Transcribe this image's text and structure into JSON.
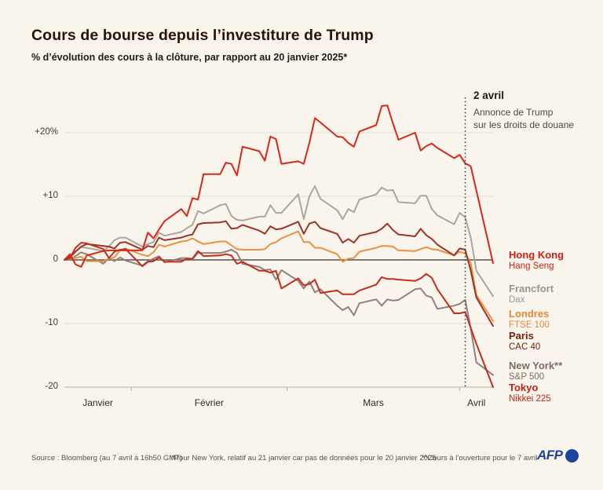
{
  "header": {
    "title": "Cours de bourse depuis l’investiture de Trump",
    "subtitle": "% d’évolution des cours à la clôture, par rapport au 20 janvier 2025*"
  },
  "footer": {
    "source": "Source : Bloomberg (au 7 avril à 16h50 GMT)",
    "note1": "*Pour New York, relatif au 21 janvier car pas de données pour le 20 janvier 2025",
    "note2": "**Cours à l’ouverture pour le 7 avril",
    "logo_text": "AFP"
  },
  "chart_data": {
    "type": "line",
    "title": "Cours de bourse depuis l’investiture de Trump",
    "ylabel": "% d’évolution des cours à la clôture",
    "x_axis": {
      "unit": "jours depuis le 20 janvier 2025",
      "total_days": 77,
      "months": [
        {
          "label": "Janvier",
          "center_day": 6
        },
        {
          "label": "Février",
          "center_day": 26
        },
        {
          "label": "Mars",
          "center_day": 55.5
        },
        {
          "label": "Avril",
          "center_day": 74
        }
      ],
      "month_boundary_ticks_days": [
        12,
        40,
        71
      ]
    },
    "y_axis": {
      "min": -20,
      "max": 25,
      "grid": true,
      "ticks": [
        {
          "label": "+20%",
          "value": 20
        },
        {
          "label": "+10",
          "value": 10
        },
        {
          "label": "0",
          "value": 0
        },
        {
          "label": "-10",
          "value": -10
        },
        {
          "label": "-20",
          "value": -20
        }
      ]
    },
    "annotation": {
      "title": "2 avril",
      "line1": "Annonce de Trump",
      "line2": "sur les droits de douane",
      "day": 72,
      "line_color": "#3b3b3b"
    },
    "day_offsets": [
      0,
      1,
      2,
      3,
      4,
      7,
      8,
      9,
      10,
      11,
      14,
      15,
      16,
      17,
      18,
      21,
      22,
      23,
      24,
      25,
      28,
      29,
      30,
      31,
      32,
      35,
      36,
      37,
      38,
      39,
      42,
      43,
      44,
      45,
      46,
      49,
      50,
      51,
      52,
      53,
      56,
      57,
      58,
      59,
      60,
      63,
      64,
      65,
      66,
      67,
      70,
      71,
      72,
      73,
      74,
      77
    ],
    "series": [
      {
        "city": "Hong Kong",
        "index_name": "Hang Seng",
        "color": "#d6281c",
        "label_color": "#cf2015",
        "values": [
          0,
          0.9,
          -0.7,
          -1.1,
          0.7,
          1.4,
          1.5,
          1.5,
          1.5,
          1.5,
          1.5,
          4.3,
          3.4,
          4.8,
          6.1,
          8.0,
          6.9,
          9.7,
          9.5,
          13.5,
          13.5,
          15.3,
          15.1,
          13.3,
          17.8,
          17.1,
          15.6,
          19.4,
          19.0,
          15.1,
          15.5,
          15.1,
          18.4,
          22.3,
          21.6,
          19.4,
          19.3,
          18.4,
          17.8,
          20.2,
          21.2,
          24.2,
          24.3,
          21.5,
          18.9,
          20.0,
          17.2,
          17.9,
          18.3,
          17.6,
          16.0,
          16.5,
          15.2,
          14.7,
          null,
          -0.5
        ]
      },
      {
        "city": "Francfort",
        "index_name": "Dax",
        "color": "#aca59c",
        "label_color": "#9b958d",
        "values": [
          0,
          0.2,
          1.3,
          2.0,
          1.9,
          1.4,
          2.1,
          3.1,
          3.5,
          3.5,
          2.1,
          2.5,
          2.8,
          4.3,
          3.8,
          4.4,
          5.0,
          5.5,
          7.7,
          7.3,
          8.6,
          8.8,
          6.9,
          6.3,
          6.2,
          6.8,
          6.8,
          8.6,
          7.4,
          7.4,
          10.3,
          6.4,
          10.0,
          11.6,
          9.6,
          7.8,
          6.4,
          8.0,
          7.5,
          9.5,
          10.3,
          11.4,
          10.9,
          11.0,
          9.1,
          8.9,
          10.1,
          10.1,
          8.0,
          7.0,
          5.6,
          7.4,
          6.7,
          3.5,
          -1.7,
          -5.7
        ]
      },
      {
        "city": "Londres",
        "index_name": "FTSE 100",
        "color": "#e79346",
        "label_color": "#e1893a",
        "values": [
          0,
          0.3,
          0.3,
          0.5,
          -0.2,
          -0.2,
          0.2,
          0.4,
          1.5,
          1.8,
          0.8,
          0.6,
          1.2,
          2.4,
          2.1,
          2.9,
          3.0,
          3.4,
          2.9,
          2.5,
          2.9,
          2.9,
          2.3,
          1.7,
          1.6,
          1.6,
          1.7,
          2.5,
          2.8,
          3.4,
          4.5,
          2.8,
          2.8,
          1.9,
          1.9,
          0.9,
          -0.3,
          0.2,
          0.3,
          1.3,
          1.9,
          2.2,
          2.2,
          2.1,
          1.5,
          1.4,
          1.7,
          2.0,
          1.7,
          1.6,
          0.7,
          1.3,
          1.0,
          -0.5,
          -5.5,
          -9.6
        ]
      },
      {
        "city": "Paris",
        "index_name": "CAC 40",
        "color": "#9c3328",
        "label_color": "#7d2014",
        "values": [
          0,
          0.5,
          1.3,
          2.1,
          2.5,
          2.2,
          2.1,
          1.8,
          2.7,
          2.8,
          1.6,
          2.2,
          2.0,
          3.5,
          3.1,
          3.5,
          3.8,
          4.0,
          5.6,
          5.8,
          5.9,
          6.1,
          4.9,
          5.0,
          5.5,
          4.6,
          4.1,
          5.3,
          4.8,
          4.9,
          6.0,
          4.1,
          5.7,
          6.0,
          5.0,
          4.1,
          2.7,
          3.3,
          2.7,
          3.8,
          4.4,
          4.9,
          5.7,
          4.7,
          4.0,
          3.7,
          4.9,
          3.9,
          3.3,
          2.4,
          0.7,
          1.8,
          1.6,
          -1.7,
          -5.9,
          -10.4
        ]
      },
      {
        "city": "New York**",
        "index_name": "S&P 500",
        "color": "#93807b",
        "label_color": "#7d6b63",
        "values": [
          null,
          0,
          0.6,
          1.2,
          0.9,
          -0.6,
          0.3,
          -0.2,
          0.4,
          -0.1,
          -0.9,
          -0.2,
          0.2,
          0.6,
          -0.4,
          0.3,
          0.3,
          0.1,
          1.1,
          1.1,
          1.1,
          1.3,
          1.6,
          1.1,
          -0.6,
          -1.1,
          -1.6,
          -1.5,
          -3.1,
          -1.6,
          -3.3,
          -4.5,
          -3.4,
          -5.1,
          -4.6,
          -7.2,
          -7.9,
          -7.4,
          -8.7,
          -6.8,
          -6.2,
          -7.2,
          -6.2,
          -6.4,
          -6.3,
          -4.6,
          -4.5,
          -5.6,
          -5.9,
          -7.7,
          -7.2,
          -6.9,
          -6.3,
          -10.8,
          -16.1,
          -18.1
        ]
      },
      {
        "city": "Tokyo",
        "index_name": "Nikkei 225",
        "color": "#c22d20",
        "label_color": "#c32414",
        "values": [
          0,
          0.3,
          1.9,
          2.7,
          2.6,
          1.7,
          0.3,
          1.3,
          1.6,
          1.7,
          -1.0,
          -0.3,
          -0.2,
          0.4,
          -0.3,
          -0.3,
          0.2,
          0.2,
          1.4,
          0.6,
          0.7,
          0.9,
          0.7,
          -0.6,
          -0.3,
          -1.7,
          -1.7,
          -2.0,
          -1.7,
          -4.5,
          -2.9,
          -4.0,
          -3.8,
          -3.1,
          -5.2,
          -4.8,
          -5.4,
          -5.4,
          -5.4,
          -4.8,
          -3.9,
          -2.7,
          -3.0,
          -3.0,
          -3.1,
          -3.3,
          -2.9,
          -2.2,
          -2.8,
          -4.6,
          -8.4,
          -8.4,
          -8.2,
          -10.7,
          -13.2,
          -20.0
        ]
      }
    ],
    "colors": {
      "background": "#faf5ec",
      "grid": "#e3dcd1",
      "zero_line": "#56524c",
      "axis": "#b8b1a6"
    }
  }
}
